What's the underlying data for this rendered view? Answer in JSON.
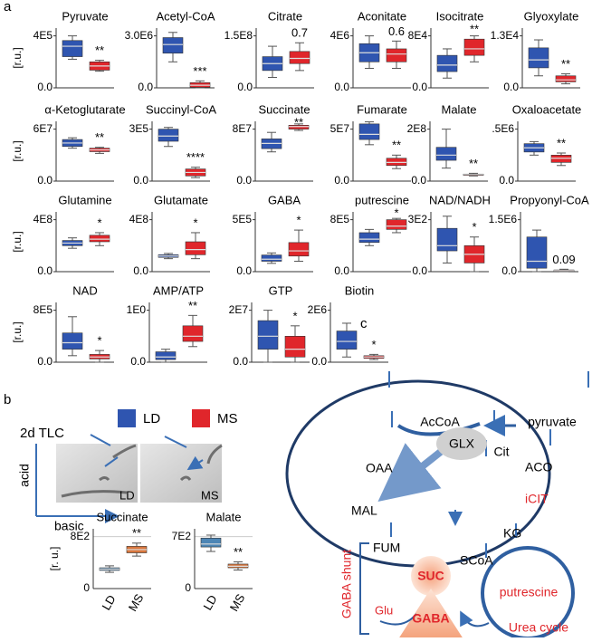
{
  "panel_labels": [
    "a",
    "b",
    "c"
  ],
  "legend": [
    {
      "name": "LD",
      "color": "#2f55b0"
    },
    {
      "name": "MS",
      "color": "#e0262b"
    }
  ],
  "chart_data": [
    {
      "type": "box",
      "title": "Pyruvate",
      "y_label": "[r.u.]",
      "ylim": [
        0,
        460000
      ],
      "yticks": [
        {
          "value": 0,
          "label": "0.0"
        },
        {
          "value": 400000,
          "label": "4E5"
        }
      ],
      "annotation": "**",
      "series": [
        {
          "color": "#2f55b0",
          "values": [
            220000,
            240000,
            320000,
            364000,
            400000
          ]
        },
        {
          "color": "#e0262b",
          "values": [
            128000,
            136000,
            168000,
            200000,
            212000
          ]
        }
      ]
    },
    {
      "type": "box",
      "title": "Acetyl-CoA",
      "ylim": [
        0,
        3450000
      ],
      "yticks": [
        {
          "value": 0,
          "label": "0.0"
        },
        {
          "value": 3000000,
          "label": "3.0E6"
        }
      ],
      "annotation": "***",
      "series": [
        {
          "color": "#2f55b0",
          "values": [
            1500000,
            2000000,
            2500000,
            2900000,
            3200000
          ]
        },
        {
          "color": "#e0262b",
          "values": [
            0,
            30000,
            150000,
            300000,
            400000
          ]
        }
      ]
    },
    {
      "type": "box",
      "title": "Citrate",
      "ylim": [
        0,
        172500000
      ],
      "yticks": [
        {
          "value": 0,
          "label": "0.0"
        },
        {
          "value": 150000000,
          "label": "1.5E8"
        }
      ],
      "annotation": "0.7",
      "series": [
        {
          "color": "#2f55b0",
          "values": [
            30000000,
            50000000,
            70000000,
            90000000,
            120000000
          ]
        },
        {
          "color": "#e0262b",
          "values": [
            50000000,
            70000000,
            85000000,
            105000000,
            130000000
          ]
        }
      ]
    },
    {
      "type": "box",
      "title": "Aconitate",
      "ylim": [
        0,
        4600000
      ],
      "yticks": [
        {
          "value": 0,
          "label": "0.0"
        },
        {
          "value": 4000000,
          "label": "4E6"
        }
      ],
      "annotation": "0.6",
      "series": [
        {
          "color": "#2f55b0",
          "values": [
            1500000,
            2000000,
            2700000,
            3400000,
            4000000
          ]
        },
        {
          "color": "#e0262b",
          "values": [
            1500000,
            2000000,
            2600000,
            3000000,
            3600000
          ]
        }
      ]
    },
    {
      "type": "box",
      "title": "Isocitrate",
      "ylim": [
        0,
        92000
      ],
      "yticks": [
        {
          "value": 0,
          "label": "0.0"
        },
        {
          "value": 80000,
          "label": "8E4"
        }
      ],
      "annotation": "**",
      "series": [
        {
          "color": "#2f55b0",
          "values": [
            15000,
            25000,
            35000,
            50000,
            60000
          ]
        },
        {
          "color": "#e0262b",
          "values": [
            40000,
            50000,
            60000,
            75000,
            80000
          ]
        }
      ]
    },
    {
      "type": "box",
      "title": "Glyoxylate",
      "ylim": [
        0,
        14950
      ],
      "yticks": [
        {
          "value": 0,
          "label": "0.0"
        },
        {
          "value": 13000,
          "label": "1.3E4"
        }
      ],
      "annotation": "**",
      "series": [
        {
          "color": "#2f55b0",
          "values": [
            3000,
            5000,
            7000,
            10000,
            12000
          ]
        },
        {
          "color": "#e0262b",
          "values": [
            1000,
            1500,
            2000,
            3000,
            3500
          ]
        }
      ]
    },
    {
      "type": "box",
      "title": "α-Ketoglutarate",
      "y_label": "[r.u.]",
      "ylim": [
        0,
        69000000
      ],
      "yticks": [
        {
          "value": 0,
          "label": "0.0"
        },
        {
          "value": 60000000,
          "label": "6E7"
        }
      ],
      "annotation": "**",
      "series": [
        {
          "color": "#2f55b0",
          "values": [
            38000000,
            40000000,
            44000000,
            48000000,
            50000000
          ]
        },
        {
          "color": "#e0262b",
          "values": [
            32000000,
            34000000,
            36000000,
            38000000,
            39000000
          ]
        }
      ]
    },
    {
      "type": "box",
      "title": "Succinyl-CoA",
      "ylim": [
        0,
        345000
      ],
      "yticks": [
        {
          "value": 0,
          "label": "0.0"
        },
        {
          "value": 300000,
          "label": "3E5"
        }
      ],
      "annotation": "****",
      "series": [
        {
          "color": "#2f55b0",
          "values": [
            200000,
            230000,
            260000,
            300000,
            310000
          ]
        },
        {
          "color": "#e0262b",
          "values": [
            20000,
            30000,
            50000,
            70000,
            80000
          ]
        }
      ]
    },
    {
      "type": "box",
      "title": "Succinate",
      "ylim": [
        0,
        92000000
      ],
      "yticks": [
        {
          "value": 0,
          "label": "0.0"
        },
        {
          "value": 80000000,
          "label": "8E7"
        }
      ],
      "annotation": "**",
      "series": [
        {
          "color": "#2f55b0",
          "values": [
            45000000,
            50000000,
            58000000,
            65000000,
            75000000
          ]
        },
        {
          "color": "#e0262b",
          "values": [
            78000000,
            80000000,
            84000000,
            86000000,
            88000000
          ]
        }
      ]
    },
    {
      "type": "box",
      "title": "Fumarate",
      "ylim": [
        0,
        57500000
      ],
      "yticks": [
        {
          "value": 0,
          "label": "0.0"
        },
        {
          "value": 50000000,
          "label": "5E7"
        }
      ],
      "annotation": "**",
      "series": [
        {
          "color": "#2f55b0",
          "values": [
            35000000,
            40000000,
            45000000,
            55000000,
            57000000
          ]
        },
        {
          "color": "#e0262b",
          "values": [
            12000000,
            15000000,
            18000000,
            22000000,
            25000000
          ]
        }
      ]
    },
    {
      "type": "box",
      "title": "Malate",
      "ylim": [
        0,
        230000000
      ],
      "yticks": [
        {
          "value": 0,
          "label": "0.0"
        },
        {
          "value": 200000000,
          "label": "2E8"
        }
      ],
      "annotation": "**",
      "series": [
        {
          "color": "#2f55b0",
          "values": [
            50000000,
            80000000,
            100000000,
            130000000,
            200000000
          ]
        },
        {
          "color": "#e0262b",
          "values": [
            20000000,
            22000000,
            25000000,
            27000000,
            30000000
          ]
        }
      ]
    },
    {
      "type": "box",
      "title": "Oxaloacetate",
      "ylim": [
        0,
        575000
      ],
      "yticks": [
        {
          "value": 0,
          "label": "0.0"
        },
        {
          "value": 500000,
          "label": ".5E6"
        }
      ],
      "annotation": "**",
      "series": [
        {
          "color": "#2f55b0",
          "values": [
            250000,
            280000,
            320000,
            360000,
            380000
          ]
        },
        {
          "color": "#e0262b",
          "values": [
            150000,
            180000,
            220000,
            250000,
            270000
          ]
        }
      ]
    },
    {
      "type": "box",
      "title": "Glutamine",
      "y_label": "[r.u.]",
      "ylim": [
        0,
        460000000
      ],
      "yticks": [
        {
          "value": 0,
          "label": "0.0"
        },
        {
          "value": 400000000,
          "label": "4E8"
        }
      ],
      "annotation": "*",
      "series": [
        {
          "color": "#2f55b0",
          "values": [
            180000000,
            200000000,
            220000000,
            240000000,
            260000000
          ]
        },
        {
          "color": "#e0262b",
          "values": [
            200000000,
            230000000,
            250000000,
            280000000,
            300000000
          ]
        }
      ]
    },
    {
      "type": "box",
      "title": "Glutamate",
      "ylim": [
        0,
        460000000
      ],
      "yticks": [
        {
          "value": 0,
          "label": "0.0"
        },
        {
          "value": 400000000,
          "label": "4E8"
        }
      ],
      "annotation": "*",
      "series": [
        {
          "color": "#2f55b0",
          "values": [
            100000000,
            110000000,
            120000000,
            130000000,
            140000000
          ]
        },
        {
          "color": "#e0262b",
          "values": [
            100000000,
            130000000,
            170000000,
            230000000,
            300000000
          ]
        }
      ]
    },
    {
      "type": "box",
      "title": "GABA",
      "ylim": [
        0,
        575000
      ],
      "yticks": [
        {
          "value": 0,
          "label": "0.0"
        },
        {
          "value": 500000,
          "label": "5E5"
        }
      ],
      "annotation": "*",
      "series": [
        {
          "color": "#2f55b0",
          "values": [
            80000,
            100000,
            120000,
            160000,
            180000
          ]
        },
        {
          "color": "#e0262b",
          "values": [
            100000,
            150000,
            200000,
            280000,
            400000
          ]
        }
      ]
    },
    {
      "type": "box",
      "title": "putrescine",
      "ylim": [
        0,
        920000
      ],
      "yticks": [
        {
          "value": 0,
          "label": "0.0"
        },
        {
          "value": 800000,
          "label": "8E5"
        }
      ],
      "annotation": "*",
      "series": [
        {
          "color": "#2f55b0",
          "values": [
            400000,
            450000,
            500000,
            600000,
            650000
          ]
        },
        {
          "color": "#e0262b",
          "values": [
            600000,
            650000,
            700000,
            800000,
            820000
          ]
        }
      ]
    },
    {
      "type": "box",
      "title": "NAD/NADH",
      "ylim": [
        0,
        345
      ],
      "yticks": [
        {
          "value": 0,
          "label": "0.0"
        },
        {
          "value": 300,
          "label": "3E2"
        }
      ],
      "annotation": "*",
      "series": [
        {
          "color": "#2f55b0",
          "values": [
            50,
            120,
            150,
            250,
            320
          ]
        },
        {
          "color": "#e0262b",
          "values": [
            0,
            50,
            100,
            150,
            200
          ]
        }
      ]
    },
    {
      "type": "box",
      "title": "Propyonyl-CoA",
      "ylim": [
        0,
        1725000
      ],
      "yticks": [
        {
          "value": 0,
          "label": "0.0"
        },
        {
          "value": 1500000,
          "label": "1.5E6"
        }
      ],
      "annotation": "0.09",
      "series": [
        {
          "color": "#2f55b0",
          "values": [
            0,
            100000,
            300000,
            1000000,
            1200000
          ]
        },
        {
          "color": "#e0262b",
          "values": [
            0,
            10000,
            30000,
            50000,
            70000
          ]
        }
      ]
    },
    {
      "type": "box",
      "title": "NAD",
      "y_label": "[r.u.]",
      "ylim": [
        0,
        920000
      ],
      "yticks": [
        {
          "value": 0,
          "label": "0.0"
        },
        {
          "value": 800000,
          "label": "8E5"
        }
      ],
      "annotation": "*",
      "series": [
        {
          "color": "#2f55b0",
          "values": [
            100000,
            200000,
            300000,
            450000,
            700000
          ]
        },
        {
          "color": "#e0262b",
          "values": [
            0,
            50000,
            80000,
            120000,
            180000
          ]
        }
      ]
    },
    {
      "type": "box",
      "title": "AMP/ATP",
      "ylim": [
        0,
        1.15
      ],
      "yticks": [
        {
          "value": 0,
          "label": "0.0"
        },
        {
          "value": 1,
          "label": "1E0"
        }
      ],
      "annotation": "**",
      "series": [
        {
          "color": "#2f55b0",
          "values": [
            0,
            0.05,
            0.1,
            0.2,
            0.25
          ]
        },
        {
          "color": "#e0262b",
          "values": [
            0.3,
            0.4,
            0.5,
            0.7,
            0.9
          ]
        }
      ]
    },
    {
      "type": "box",
      "title": "GTP",
      "ylim": [
        0,
        23000000
      ],
      "yticks": [
        {
          "value": 0,
          "label": "0.0"
        },
        {
          "value": 20000000,
          "label": "2E7"
        }
      ],
      "annotation": "*",
      "series": [
        {
          "color": "#2f55b0",
          "values": [
            0,
            5000000,
            10000000,
            16000000,
            20000000
          ]
        },
        {
          "color": "#e0262b",
          "values": [
            0,
            2000000,
            5000000,
            10000000,
            14000000
          ]
        }
      ]
    },
    {
      "type": "box",
      "title": "Biotin",
      "ylim": [
        0,
        2300000
      ],
      "yticks": [
        {
          "value": 0,
          "label": "0.0"
        },
        {
          "value": 2000000,
          "label": "2E6"
        }
      ],
      "annotation": "*",
      "series": [
        {
          "color": "#2f55b0",
          "values": [
            200000,
            500000,
            800000,
            1200000,
            1500000
          ]
        },
        {
          "color": "#e0262b",
          "values": [
            100000,
            150000,
            200000,
            250000,
            300000
          ]
        }
      ]
    },
    {
      "type": "box",
      "title": "Succinate",
      "y_label": "[r. u.]",
      "categories": [
        "LD",
        "MS"
      ],
      "grid": true,
      "ylim": [
        0,
        920
      ],
      "yticks": [
        0,
        {
          "value": 800,
          "label": "8E2"
        }
      ],
      "annotation": "**",
      "series": [
        {
          "color": "#4d86b5",
          "values": [
            250,
            280,
            300,
            320,
            350
          ]
        },
        {
          "color": "#d9773e",
          "values": [
            500,
            550,
            600,
            650,
            700
          ]
        }
      ]
    },
    {
      "type": "box",
      "title": "Malate",
      "categories": [
        "LD",
        "MS"
      ],
      "grid": true,
      "ylim": [
        0,
        805
      ],
      "yticks": [
        0,
        {
          "value": 700,
          "label": "7E2"
        }
      ],
      "annotation": "**",
      "series": [
        {
          "color": "#4d86b5",
          "values": [
            500,
            560,
            600,
            680,
            720
          ]
        },
        {
          "color": "#d9773e",
          "values": [
            250,
            280,
            300,
            330,
            360
          ]
        }
      ]
    }
  ],
  "tlc": {
    "title": "2d TLC",
    "axis_y": "acid",
    "axis_x": "basic",
    "images": [
      "LD",
      "MS"
    ]
  },
  "diagram": {
    "nodes": [
      "AcCoA",
      "pyruvate",
      "Cit",
      "ACO",
      "iCIT",
      "KG",
      "SCoA",
      "SUC",
      "FUM",
      "MAL",
      "OAA",
      "GLX",
      "GABA",
      "Glu",
      "putrescine"
    ],
    "shunt": "GABA shunt",
    "cycle": "Urea cycle"
  }
}
